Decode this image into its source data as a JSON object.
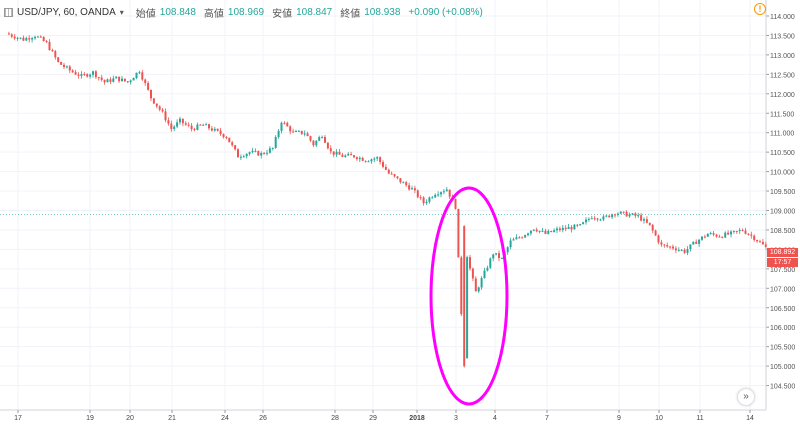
{
  "header": {
    "symbol": "USD/JPY, 60, OANDA",
    "open_label": "始値",
    "open_value": "108.848",
    "high_label": "高値",
    "high_value": "108.969",
    "low_label": "安値",
    "low_value": "108.847",
    "close_label": "終値",
    "close_value": "108.938",
    "change": "+0.090 (+0.08%)"
  },
  "price_label": "108.892",
  "time_label": "17:57",
  "colors": {
    "up": "#26a69a",
    "down": "#ef5350",
    "highlight": "#ff00ff",
    "last_line": "#26a69a"
  },
  "chart_data": {
    "type": "candlestick",
    "y_ticks": [
      "114.000",
      "113.500",
      "113.000",
      "112.500",
      "112.000",
      "111.500",
      "111.000",
      "110.500",
      "110.000",
      "109.500",
      "109.000",
      "108.500",
      "108.000",
      "107.500",
      "107.000",
      "106.500",
      "106.000",
      "105.500",
      "105.000",
      "104.500"
    ],
    "y_tick_values": [
      114.0,
      113.5,
      113.0,
      112.5,
      112.0,
      111.5,
      111.0,
      110.5,
      110.0,
      109.5,
      109.0,
      108.5,
      108.0,
      107.5,
      107.0,
      106.5,
      106.0,
      105.5,
      105.0,
      104.5
    ],
    "x_ticks": [
      "17",
      "19",
      "20",
      "21",
      "24",
      "26",
      "28",
      "29",
      "2018",
      "3",
      "4",
      "7",
      "9",
      "10",
      "11",
      "14"
    ],
    "ylim": [
      104.3,
      114.1
    ],
    "last_price": 108.892,
    "path": [
      {
        "i": 0,
        "p": 113.55
      },
      {
        "i": 6,
        "p": 113.4
      },
      {
        "i": 10,
        "p": 113.5
      },
      {
        "i": 14,
        "p": 113.3
      },
      {
        "i": 18,
        "p": 112.8
      },
      {
        "i": 22,
        "p": 112.6
      },
      {
        "i": 26,
        "p": 112.45
      },
      {
        "i": 30,
        "p": 112.55
      },
      {
        "i": 34,
        "p": 112.3
      },
      {
        "i": 38,
        "p": 112.4
      },
      {
        "i": 42,
        "p": 112.3
      },
      {
        "i": 46,
        "p": 112.6
      },
      {
        "i": 50,
        "p": 111.9
      },
      {
        "i": 54,
        "p": 111.5
      },
      {
        "i": 57,
        "p": 111.1
      },
      {
        "i": 60,
        "p": 111.3
      },
      {
        "i": 64,
        "p": 111.1
      },
      {
        "i": 68,
        "p": 111.2
      },
      {
        "i": 72,
        "p": 111.05
      },
      {
        "i": 76,
        "p": 110.9
      },
      {
        "i": 80,
        "p": 110.4
      },
      {
        "i": 84,
        "p": 110.5
      },
      {
        "i": 88,
        "p": 110.45
      },
      {
        "i": 92,
        "p": 110.6
      },
      {
        "i": 95,
        "p": 111.3
      },
      {
        "i": 99,
        "p": 111.0
      },
      {
        "i": 103,
        "p": 111.0
      },
      {
        "i": 106,
        "p": 110.7
      },
      {
        "i": 109,
        "p": 110.95
      },
      {
        "i": 112,
        "p": 110.5
      },
      {
        "i": 116,
        "p": 110.4
      },
      {
        "i": 120,
        "p": 110.4
      },
      {
        "i": 124,
        "p": 110.3
      },
      {
        "i": 128,
        "p": 110.35
      },
      {
        "i": 132,
        "p": 109.95
      },
      {
        "i": 136,
        "p": 109.75
      },
      {
        "i": 140,
        "p": 109.55
      },
      {
        "i": 144,
        "p": 109.2
      },
      {
        "i": 148,
        "p": 109.45
      },
      {
        "i": 152,
        "p": 109.55
      },
      {
        "i": 155,
        "p": 109.1
      },
      {
        "i": 158,
        "p": 105.0
      },
      {
        "i": 159,
        "p": 107.8
      },
      {
        "i": 162,
        "p": 106.9
      },
      {
        "i": 165,
        "p": 107.4
      },
      {
        "i": 168,
        "p": 107.9
      },
      {
        "i": 171,
        "p": 107.75
      },
      {
        "i": 174,
        "p": 108.2
      },
      {
        "i": 178,
        "p": 108.35
      },
      {
        "i": 182,
        "p": 108.55
      },
      {
        "i": 186,
        "p": 108.4
      },
      {
        "i": 190,
        "p": 108.5
      },
      {
        "i": 194,
        "p": 108.55
      },
      {
        "i": 198,
        "p": 108.6
      },
      {
        "i": 202,
        "p": 108.85
      },
      {
        "i": 206,
        "p": 108.8
      },
      {
        "i": 210,
        "p": 108.95
      },
      {
        "i": 214,
        "p": 108.9
      },
      {
        "i": 218,
        "p": 108.85
      },
      {
        "i": 222,
        "p": 108.6
      },
      {
        "i": 226,
        "p": 108.1
      },
      {
        "i": 230,
        "p": 108.05
      },
      {
        "i": 234,
        "p": 107.95
      },
      {
        "i": 238,
        "p": 108.2
      },
      {
        "i": 242,
        "p": 108.4
      },
      {
        "i": 246,
        "p": 108.35
      },
      {
        "i": 250,
        "p": 108.4
      },
      {
        "i": 254,
        "p": 108.5
      },
      {
        "i": 258,
        "p": 108.3
      },
      {
        "i": 262,
        "p": 108.05
      }
    ],
    "annotation": {
      "shape": "ellipse",
      "color": "#ff00ff",
      "around": "flash crash on day 3"
    }
  }
}
